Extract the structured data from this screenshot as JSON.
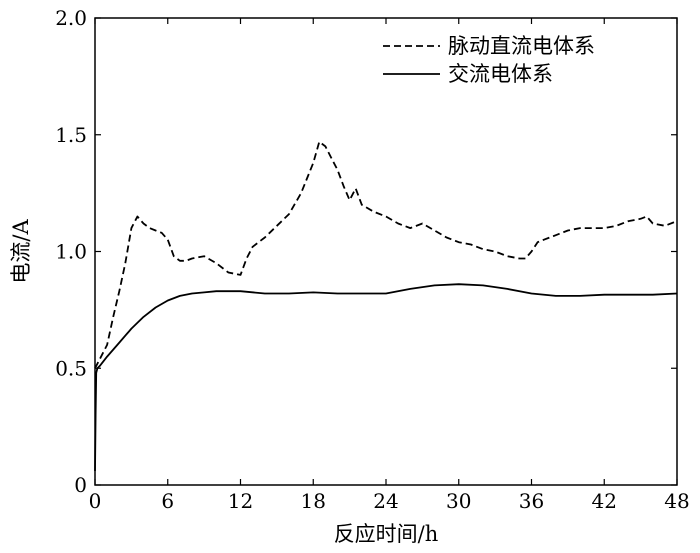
{
  "chart_data": {
    "type": "line",
    "xlabel": "反应时间/h",
    "ylabel": "电流/A",
    "xlim": [
      0,
      48
    ],
    "ylim": [
      0,
      2.0
    ],
    "xticks": [
      0,
      6,
      12,
      18,
      24,
      30,
      36,
      42,
      48
    ],
    "yticks": [
      0,
      0.5,
      1.0,
      1.5,
      2.0
    ],
    "xtick_labels": [
      "0",
      "6",
      "12",
      "18",
      "24",
      "30",
      "36",
      "42",
      "48"
    ],
    "ytick_labels": [
      "0",
      "0.5",
      "1.0",
      "1.5",
      "2.0"
    ],
    "grid": false,
    "legend_position": "top-right",
    "series": [
      {
        "name": "脉动直流电体系",
        "style": "dashed",
        "color": "#000000",
        "x": [
          0,
          0.5,
          1,
          1.5,
          2,
          2.5,
          3,
          3.5,
          4,
          4.5,
          5,
          5.5,
          6,
          6.5,
          7,
          7.5,
          8,
          9,
          10,
          11,
          12,
          12.5,
          13,
          14,
          15,
          16,
          17,
          18,
          18.5,
          19,
          19.5,
          20,
          20.5,
          21,
          21.5,
          22,
          23,
          24,
          25,
          26,
          27,
          28,
          29,
          30,
          31,
          32,
          33,
          34,
          35,
          35.5,
          36,
          36.5,
          37,
          38,
          39,
          40,
          41,
          42,
          43,
          44,
          45,
          45.5,
          46,
          47,
          48
        ],
        "y": [
          0.5,
          0.55,
          0.6,
          0.72,
          0.83,
          0.95,
          1.1,
          1.15,
          1.12,
          1.1,
          1.09,
          1.08,
          1.05,
          0.98,
          0.96,
          0.96,
          0.97,
          0.98,
          0.95,
          0.91,
          0.9,
          0.97,
          1.02,
          1.06,
          1.11,
          1.16,
          1.25,
          1.38,
          1.47,
          1.45,
          1.4,
          1.35,
          1.28,
          1.22,
          1.27,
          1.2,
          1.17,
          1.15,
          1.12,
          1.1,
          1.12,
          1.09,
          1.06,
          1.04,
          1.03,
          1.01,
          1.0,
          0.98,
          0.97,
          0.97,
          1.0,
          1.04,
          1.05,
          1.07,
          1.09,
          1.1,
          1.1,
          1.1,
          1.11,
          1.13,
          1.14,
          1.15,
          1.12,
          1.11,
          1.13
        ]
      },
      {
        "name": "交流电体系",
        "style": "solid",
        "color": "#000000",
        "x": [
          0,
          0.05,
          0.1,
          0.2,
          0.4,
          1,
          2,
          3,
          4,
          5,
          6,
          7,
          8,
          9,
          10,
          11,
          12,
          14,
          16,
          18,
          20,
          22,
          24,
          26,
          28,
          30,
          32,
          34,
          36,
          38,
          40,
          42,
          44,
          46,
          48
        ],
        "y": [
          0.06,
          0.3,
          0.48,
          0.5,
          0.51,
          0.55,
          0.61,
          0.67,
          0.72,
          0.76,
          0.79,
          0.81,
          0.82,
          0.825,
          0.83,
          0.83,
          0.83,
          0.82,
          0.82,
          0.825,
          0.82,
          0.82,
          0.82,
          0.84,
          0.855,
          0.86,
          0.855,
          0.84,
          0.82,
          0.81,
          0.81,
          0.815,
          0.815,
          0.815,
          0.82
        ]
      }
    ]
  }
}
